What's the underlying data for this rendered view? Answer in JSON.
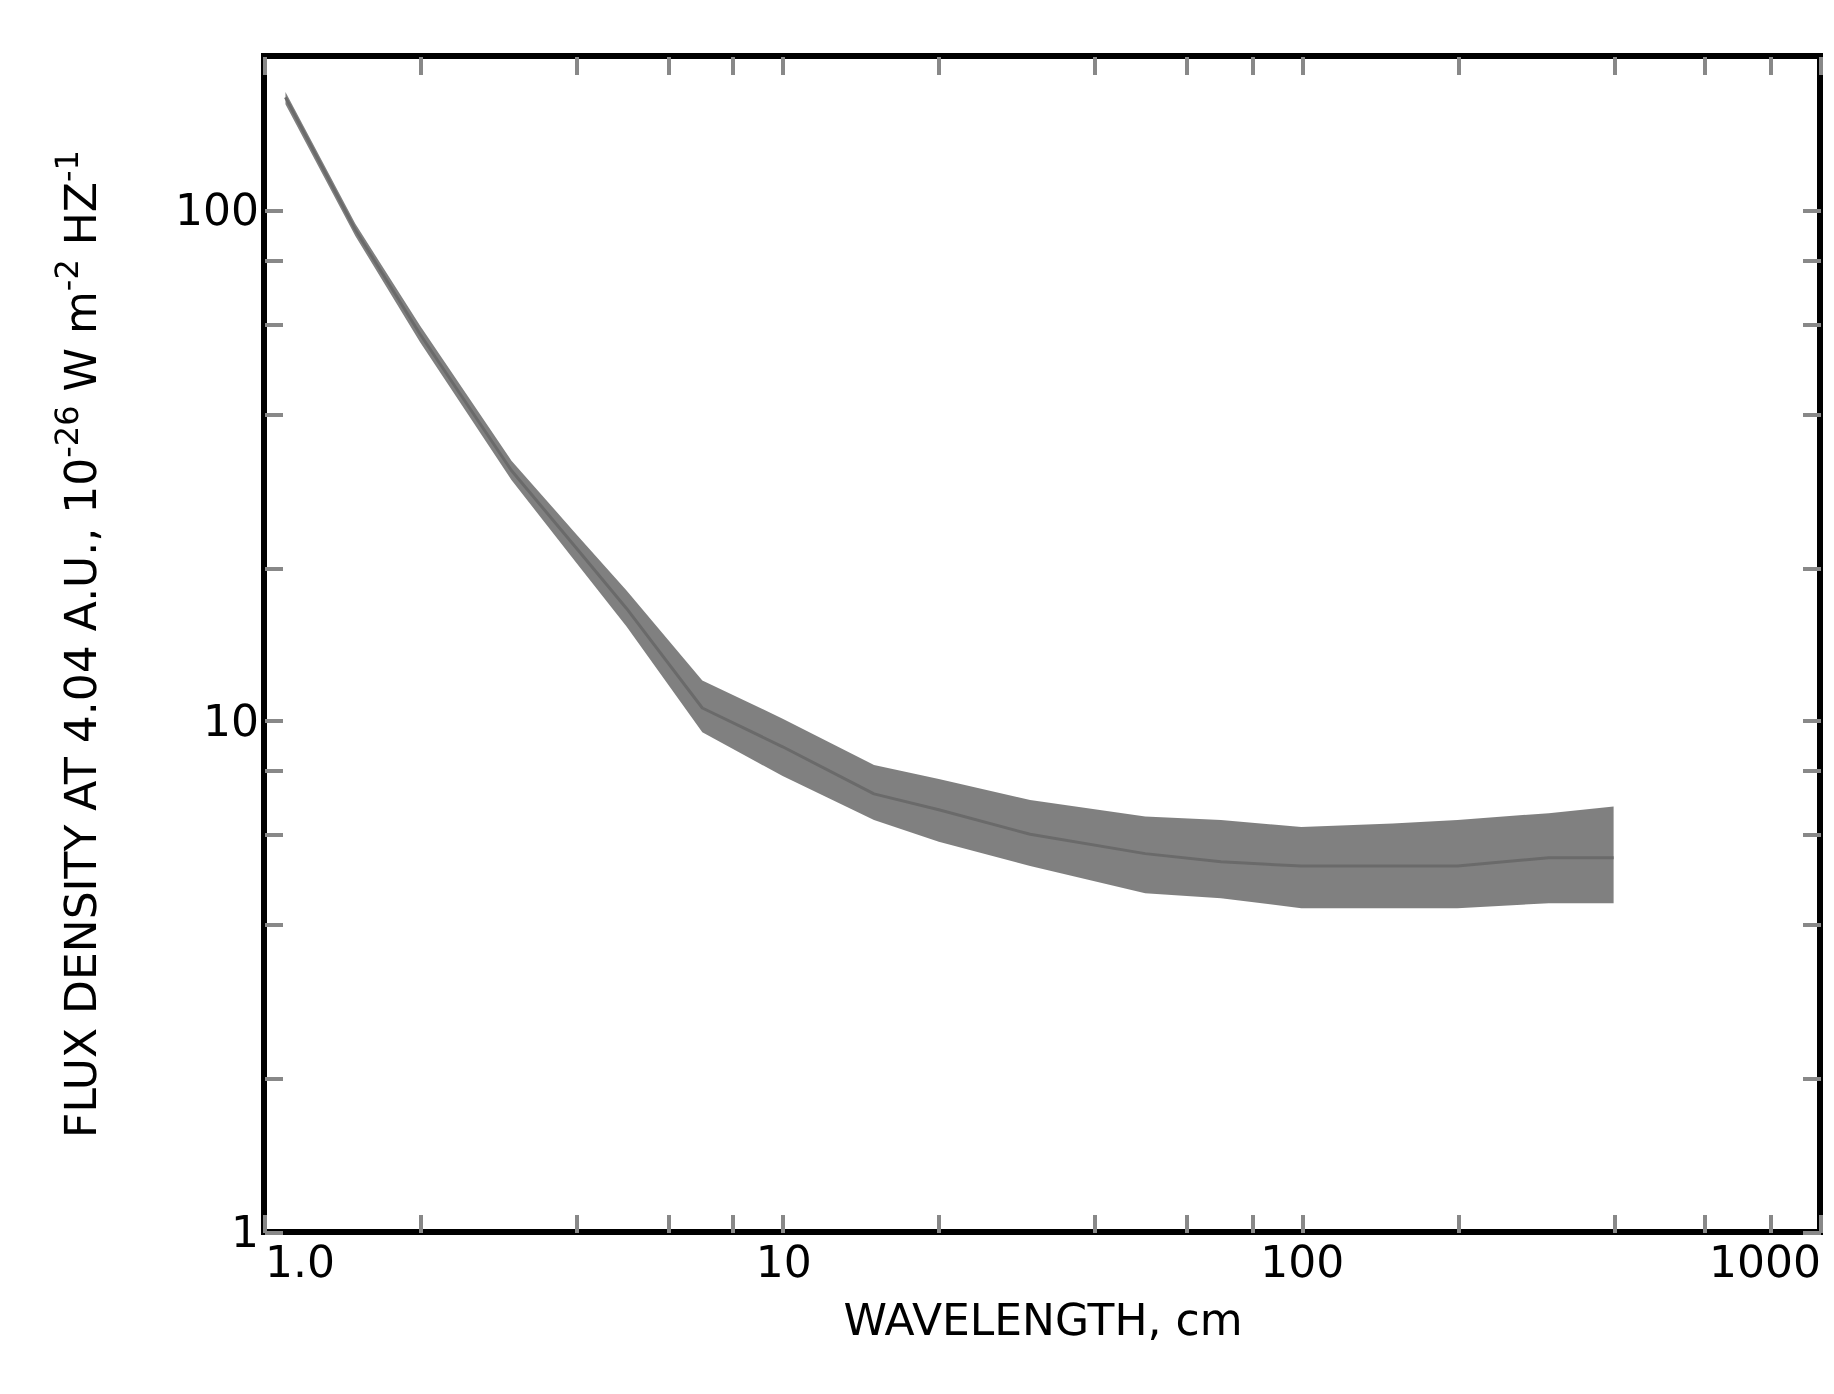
{
  "chart_data": {
    "type": "line",
    "xlabel": "WAVELENGTH, cm",
    "ylabel": "FLUX DENSITY AT 4.04 A.U., 10$^{-26}$ W m$^{-2}$ HZ$^{-1}$",
    "x": [
      1.1,
      1.5,
      2,
      3,
      4,
      5,
      7,
      10,
      15,
      20,
      30,
      50,
      70,
      100,
      150,
      200,
      300,
      400
    ],
    "series": [
      {
        "color": "#6a6a6a",
        "values": [
          166,
          91.4,
          57.1,
          30.9,
          21.8,
          16.6,
          10.6,
          8.9,
          7.2,
          6.7,
          6.0,
          5.5,
          5.3,
          5.2,
          5.2,
          5.2,
          5.4,
          5.4
        ],
        "lower": [
          161,
          88.9,
          55.1,
          29.6,
          20.4,
          15.3,
          9.5,
          7.8,
          6.4,
          5.8,
          5.2,
          4.6,
          4.5,
          4.3,
          4.3,
          4.3,
          4.4,
          4.4
        ],
        "upper": [
          170,
          93.9,
          59.3,
          32.3,
          23.2,
          18.0,
          12.0,
          10.1,
          8.2,
          7.7,
          7.0,
          6.5,
          6.4,
          6.2,
          6.3,
          6.4,
          6.6,
          6.8
        ]
      }
    ],
    "log": "xy",
    "grid": false,
    "xlim": [
      1,
      1000
    ],
    "ylim": [
      1,
      200
    ],
    "xticks": [
      {
        "value": 1,
        "label": "1.0"
      },
      {
        "value": 2,
        "label": null
      },
      {
        "value": 4,
        "label": null
      },
      {
        "value": 6,
        "label": null
      },
      {
        "value": 8,
        "label": null
      },
      10,
      {
        "value": 20,
        "label": null
      },
      {
        "value": 40,
        "label": null
      },
      {
        "value": 60,
        "label": null
      },
      {
        "value": 80,
        "label": null
      },
      100,
      {
        "value": 200,
        "label": null
      },
      {
        "value": 400,
        "label": null
      },
      {
        "value": 600,
        "label": null
      },
      {
        "value": 800,
        "label": null
      },
      1000
    ],
    "yticks": [
      1,
      {
        "value": 2,
        "label": null
      },
      {
        "value": 4,
        "label": null
      },
      {
        "value": 6,
        "label": null
      },
      {
        "value": 8,
        "label": null
      },
      10,
      {
        "value": 20,
        "label": null
      },
      {
        "value": 40,
        "label": null
      },
      {
        "value": 60,
        "label": null
      },
      {
        "value": 80,
        "label": null
      },
      100
    ]
  }
}
